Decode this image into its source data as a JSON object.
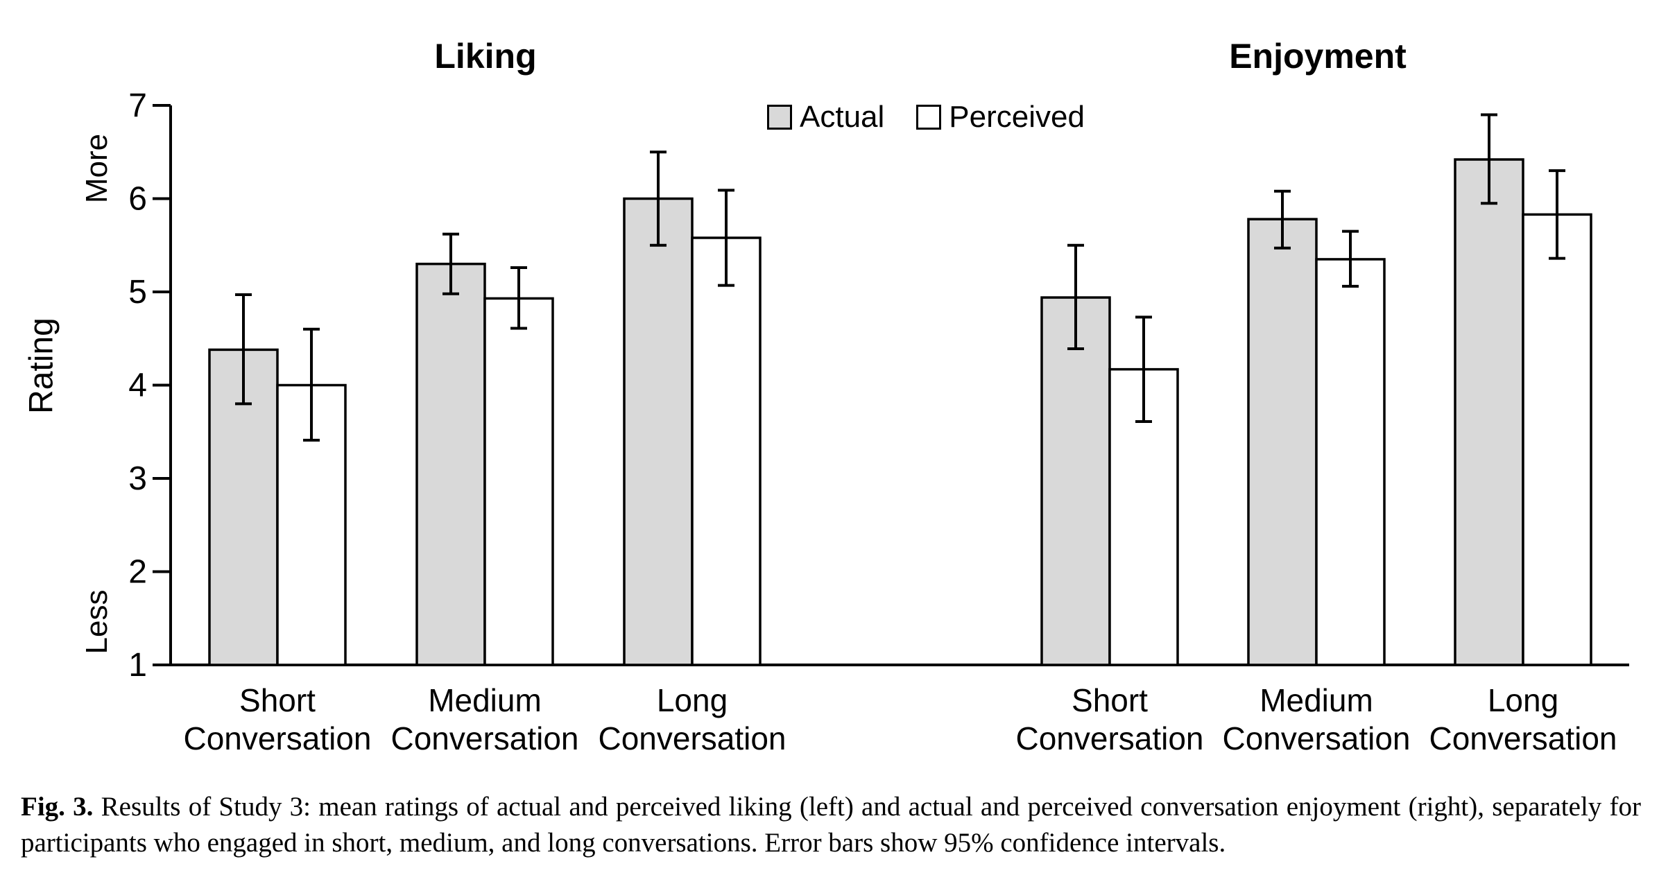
{
  "chart_data": {
    "type": "bar",
    "ylabel": "Rating",
    "y_axis_annotations": [
      "More",
      "Less"
    ],
    "ylim": [
      1,
      7
    ],
    "yticks": [
      1,
      2,
      3,
      4,
      5,
      6,
      7
    ],
    "legend": [
      "Actual",
      "Perceived"
    ],
    "error_bars": "95% confidence intervals",
    "colors": {
      "actual_fill": "#d9d9d9",
      "perceived_fill": "#ffffff",
      "stroke": "#000000"
    },
    "panels": [
      {
        "title": "Liking",
        "categories": [
          "Short Conversation",
          "Medium Conversation",
          "Long Conversation"
        ],
        "series": [
          {
            "name": "Actual",
            "values": [
              4.38,
              5.3,
              6.0
            ],
            "ci_low": [
              3.8,
              4.98,
              5.5
            ],
            "ci_high": [
              4.97,
              5.62,
              6.5
            ]
          },
          {
            "name": "Perceived",
            "values": [
              4.0,
              4.93,
              5.58
            ],
            "ci_low": [
              3.41,
              4.61,
              5.07
            ],
            "ci_high": [
              4.6,
              5.26,
              6.09
            ]
          }
        ]
      },
      {
        "title": "Enjoyment",
        "categories": [
          "Short Conversation",
          "Medium Conversation",
          "Long Conversation"
        ],
        "series": [
          {
            "name": "Actual",
            "values": [
              4.94,
              5.78,
              6.42
            ],
            "ci_low": [
              4.39,
              5.47,
              5.95
            ],
            "ci_high": [
              5.5,
              6.08,
              6.9
            ]
          },
          {
            "name": "Perceived",
            "values": [
              4.17,
              5.35,
              5.83
            ],
            "ci_low": [
              3.61,
              5.06,
              5.36
            ],
            "ci_high": [
              4.73,
              5.65,
              6.3
            ]
          }
        ]
      }
    ]
  },
  "caption": {
    "label": "Fig. 3.",
    "text": "Results of Study 3: mean ratings of actual and perceived liking (left) and actual and perceived conversation enjoyment (right), separately for participants who engaged in short, medium, and long conversations. Error bars show 95% confidence intervals."
  }
}
